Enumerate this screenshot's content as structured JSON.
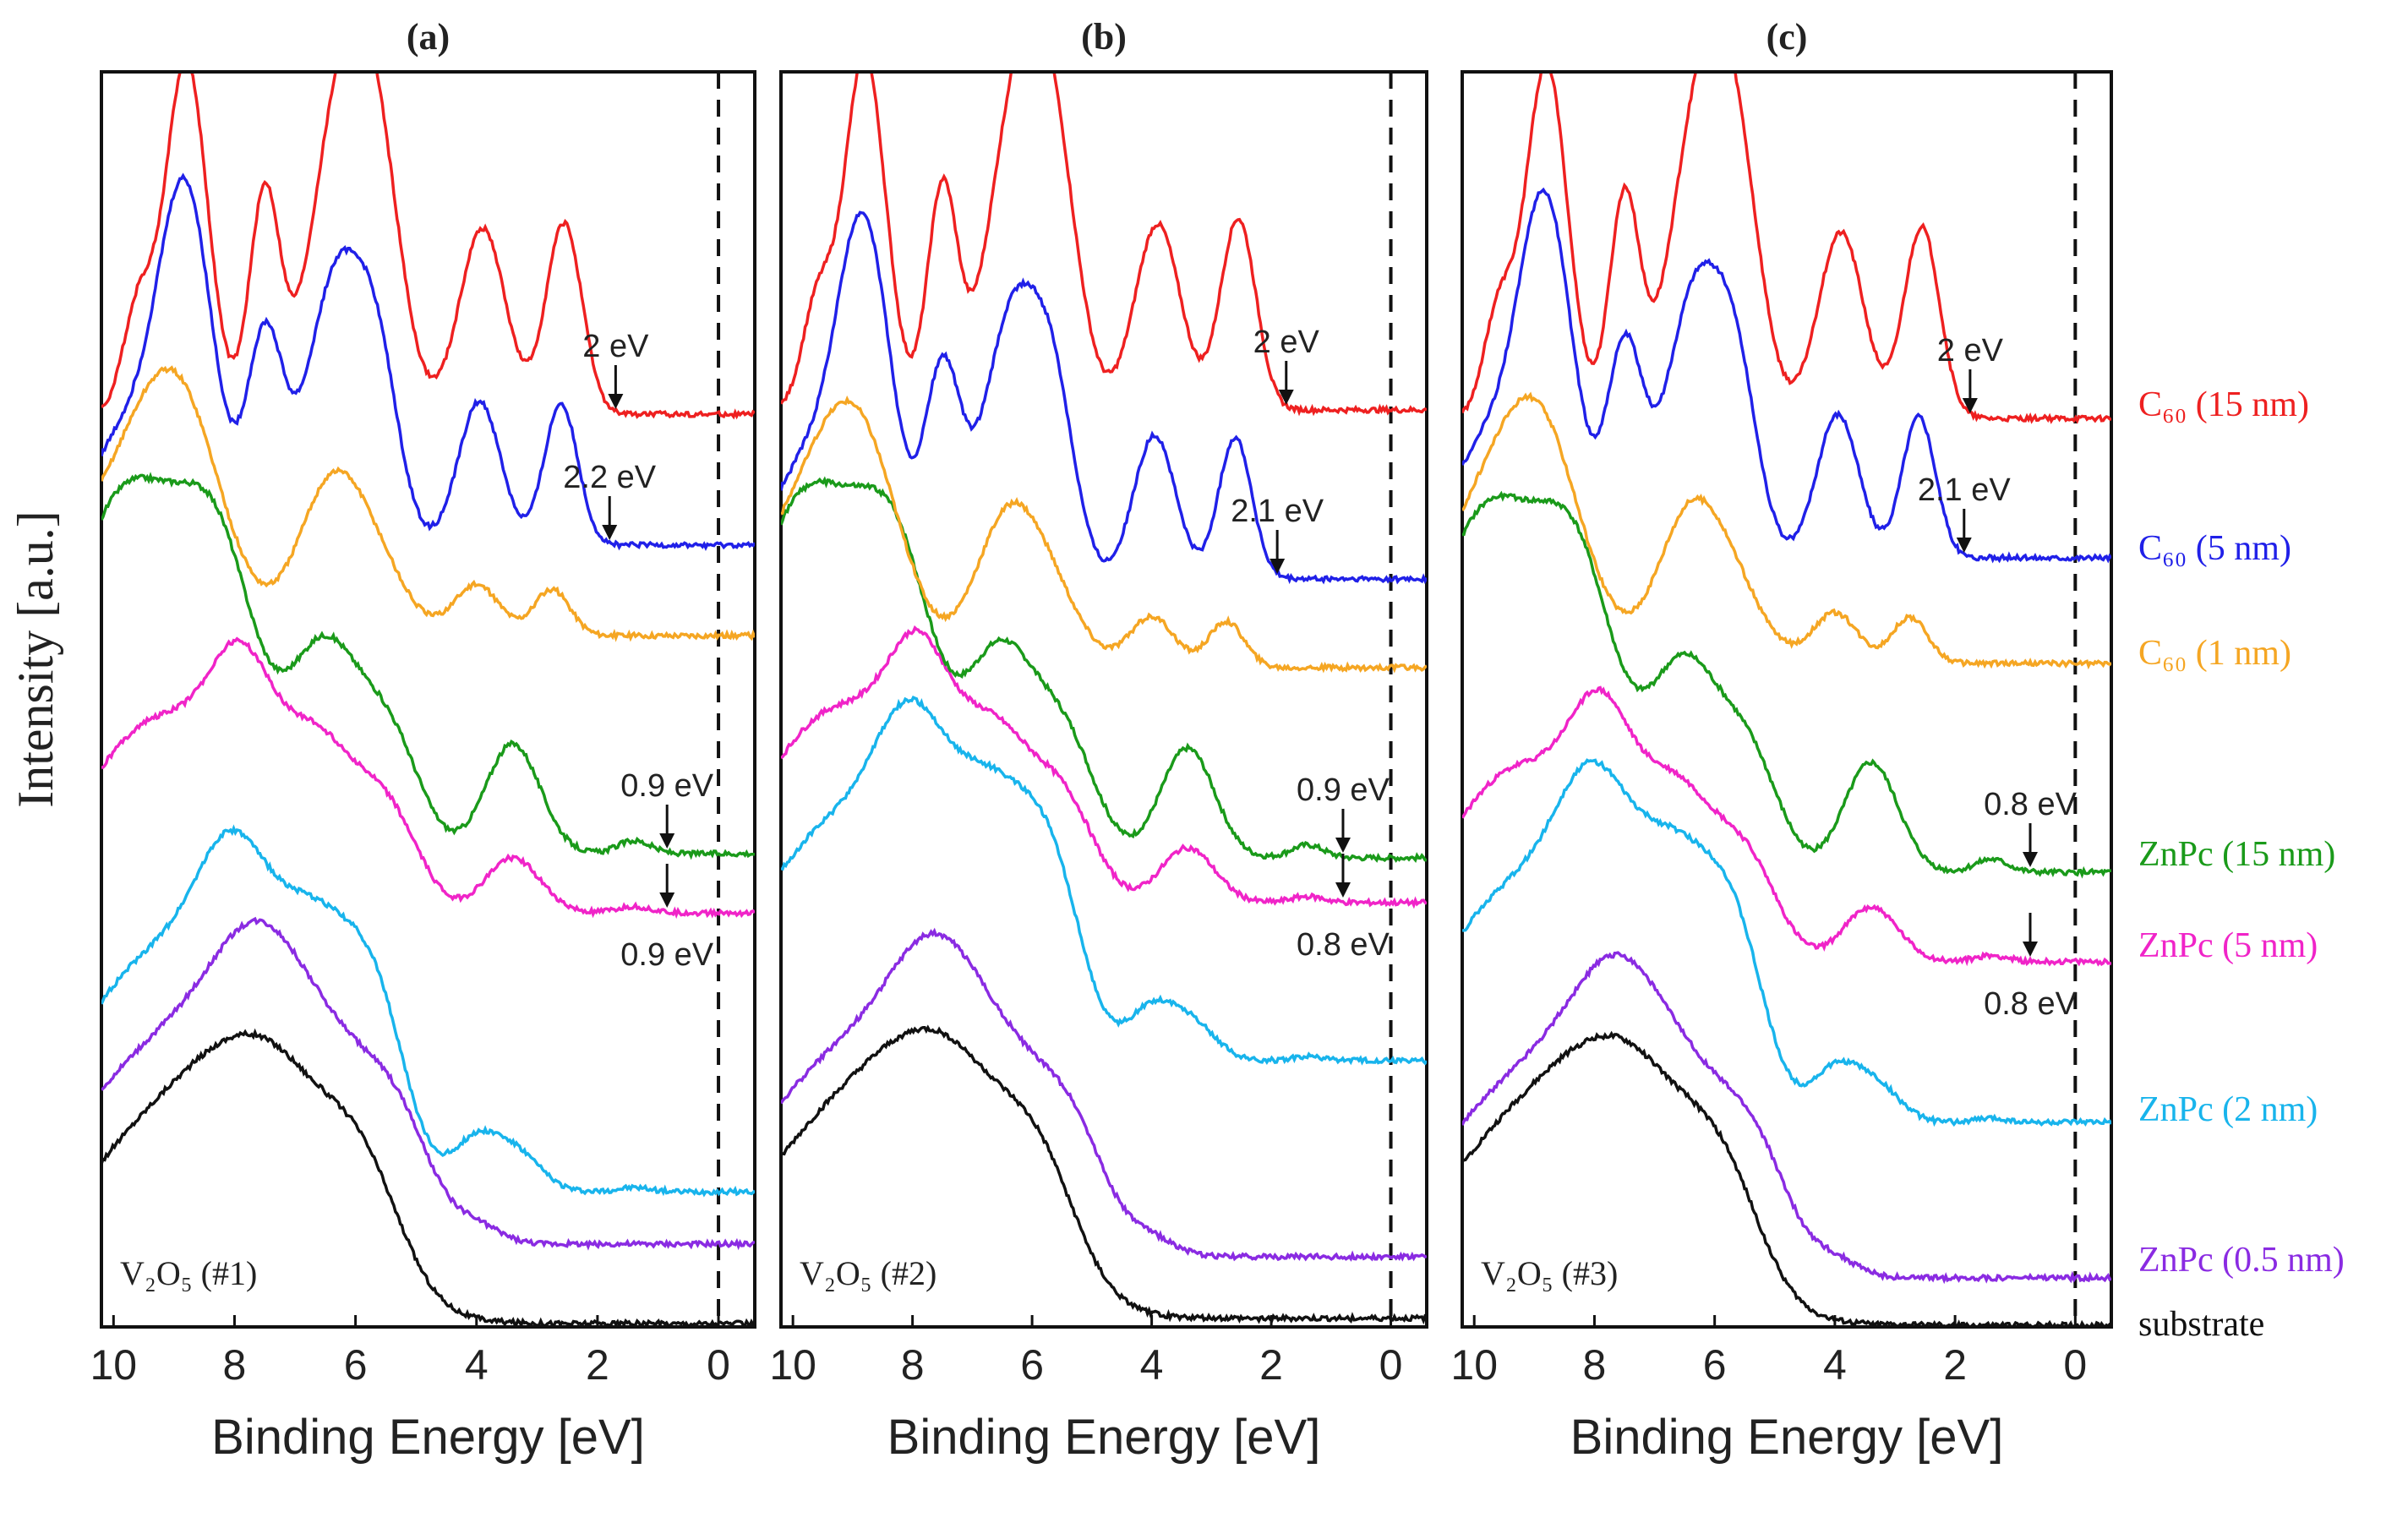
{
  "chart_data": {
    "type": "line",
    "ylabel": "Intensity [a.u.]",
    "x_tick_values": [
      10,
      8,
      6,
      4,
      2,
      0
    ],
    "xlim": [
      10.2,
      -0.6
    ],
    "panels": [
      {
        "title": "(a)",
        "sample": "V₂O₅ (#1)",
        "xlabel": "Binding Energy [eV]",
        "annotations": [
          {
            "text": "2 eV",
            "x": 1.7,
            "series": "c60_15"
          },
          {
            "text": "2.2 eV",
            "x": 1.8,
            "series": "c60_5"
          },
          {
            "text": "0.9 eV",
            "x": 0.85,
            "series": "znpc_15",
            "label_pos": "above"
          },
          {
            "text": "0.9 eV",
            "x": 0.85,
            "series": "znpc_5",
            "label_pos": "below"
          }
        ]
      },
      {
        "title": "(b)",
        "sample": "V₂O₅ (#2)",
        "xlabel": "Binding Energy [eV]",
        "annotations": [
          {
            "text": "2 eV",
            "x": 1.75,
            "series": "c60_15"
          },
          {
            "text": "2.1 eV",
            "x": 1.9,
            "series": "c60_5"
          },
          {
            "text": "0.9 eV",
            "x": 0.8,
            "series": "znpc_15",
            "label_pos": "above"
          },
          {
            "text": "0.8 eV",
            "x": 0.8,
            "series": "znpc_5",
            "label_pos": "below"
          }
        ]
      },
      {
        "title": "(c)",
        "sample": "V₂O₅ (#3)",
        "xlabel": "Binding Energy [eV]",
        "annotations": [
          {
            "text": "2 eV",
            "x": 1.75,
            "series": "c60_15"
          },
          {
            "text": "2.1 eV",
            "x": 1.85,
            "series": "c60_5"
          },
          {
            "text": "0.8 eV",
            "x": 0.75,
            "series": "znpc_15",
            "label_pos": "above"
          },
          {
            "text": "0.8 eV",
            "x": 0.75,
            "series": "znpc_5",
            "label_pos": "below"
          }
        ]
      }
    ],
    "legend": [
      {
        "id": "c60_15",
        "name": "C₆₀ (15 nm)",
        "color": "#ee2020"
      },
      {
        "id": "c60_5",
        "name": "C₆₀ (5 nm)",
        "color": "#2020e8"
      },
      {
        "id": "c60_1",
        "name": "C₆₀ (1 nm)",
        "color": "#f5a623"
      },
      {
        "id": "znpc_15",
        "name": "ZnPc (15 nm)",
        "color": "#1a9a1a"
      },
      {
        "id": "znpc_5",
        "name": "ZnPc (5 nm)",
        "color": "#f024c8"
      },
      {
        "id": "znpc_2",
        "name": "ZnPc (2 nm)",
        "color": "#18b4ec"
      },
      {
        "id": "znpc_05",
        "name": "ZnPc (0.5 nm)",
        "color": "#8a2be2"
      },
      {
        "id": "substrate",
        "name": "substrate",
        "color": "#111111"
      }
    ]
  }
}
